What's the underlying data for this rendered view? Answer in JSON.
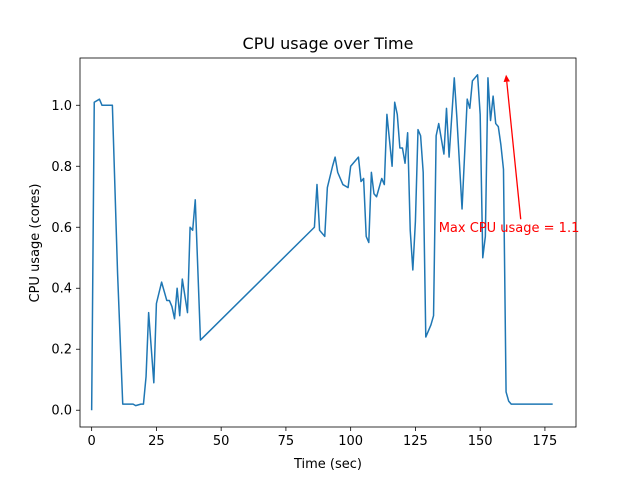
{
  "chart_data": {
    "type": "line",
    "title": "CPU usage over Time",
    "xlabel": "Time (sec)",
    "ylabel": "CPU usage (cores)",
    "xlim": [
      -4.5,
      187
    ],
    "ylim": [
      -0.055,
      1.155
    ],
    "xticks": [
      0,
      25,
      50,
      75,
      100,
      125,
      150,
      175
    ],
    "yticks": [
      0.0,
      0.2,
      0.4,
      0.6,
      0.8,
      1.0
    ],
    "xtick_labels": [
      "0",
      "25",
      "50",
      "75",
      "100",
      "125",
      "150",
      "175"
    ],
    "ytick_labels": [
      "0.0",
      "0.2",
      "0.4",
      "0.6",
      "0.8",
      "1.0"
    ],
    "grid": false,
    "line_color": "#1f77b4",
    "annotation_color": "#ff0000",
    "series": [
      {
        "x": [
          0,
          1,
          3,
          4,
          5,
          8,
          10,
          12,
          14,
          16,
          17,
          19,
          20,
          21,
          22,
          24,
          25,
          27,
          29,
          30,
          31,
          32,
          33,
          34,
          35,
          37,
          38,
          39,
          40,
          42,
          86,
          87,
          88,
          90,
          91,
          93,
          94,
          95,
          97,
          99,
          100,
          103,
          104,
          105,
          106,
          107,
          108,
          109,
          110,
          112,
          113,
          114,
          116,
          117,
          118,
          119,
          120,
          121,
          122,
          123,
          124,
          125,
          126,
          127,
          128,
          129,
          131,
          132,
          133,
          134,
          136,
          137,
          138,
          140,
          141,
          143,
          145,
          146,
          147,
          148,
          149,
          150,
          151,
          152,
          153,
          154,
          155,
          156,
          157,
          158,
          159,
          160,
          161,
          162,
          163,
          164,
          165,
          166,
          167,
          168,
          169,
          170,
          171,
          172,
          173,
          174,
          175,
          176,
          178
        ],
        "y": [
          0.0,
          1.01,
          1.02,
          1.0,
          1.0,
          1.0,
          0.45,
          0.02,
          0.02,
          0.02,
          0.015,
          0.02,
          0.02,
          0.11,
          0.32,
          0.09,
          0.35,
          0.42,
          0.36,
          0.36,
          0.34,
          0.3,
          0.4,
          0.31,
          0.43,
          0.32,
          0.6,
          0.59,
          0.69,
          0.23,
          0.6,
          0.74,
          0.59,
          0.57,
          0.73,
          0.8,
          0.83,
          0.78,
          0.74,
          0.73,
          0.8,
          0.83,
          0.75,
          0.76,
          0.57,
          0.55,
          0.78,
          0.71,
          0.7,
          0.76,
          0.74,
          0.97,
          0.8,
          1.01,
          0.97,
          0.86,
          0.86,
          0.81,
          0.91,
          0.59,
          0.46,
          0.62,
          0.92,
          0.9,
          0.78,
          0.24,
          0.28,
          0.31,
          0.9,
          0.94,
          0.84,
          0.99,
          0.83,
          1.09,
          0.96,
          0.66,
          1.02,
          0.99,
          1.08,
          1.09,
          1.1,
          0.97,
          0.5,
          0.57,
          1.09,
          0.95,
          1.03,
          0.94,
          0.93,
          0.87,
          0.79,
          0.06,
          0.03,
          0.02,
          0.02,
          0.02,
          0.02,
          0.02,
          0.02,
          0.02,
          0.02,
          0.02,
          0.02,
          0.02,
          0.02,
          0.02,
          0.02,
          0.02,
          0.02
        ]
      }
    ],
    "annotation": {
      "text": "Max CPU usage = 1.1",
      "xy": [
        160,
        1.1
      ],
      "xytext": [
        134,
        0.6
      ]
    }
  }
}
